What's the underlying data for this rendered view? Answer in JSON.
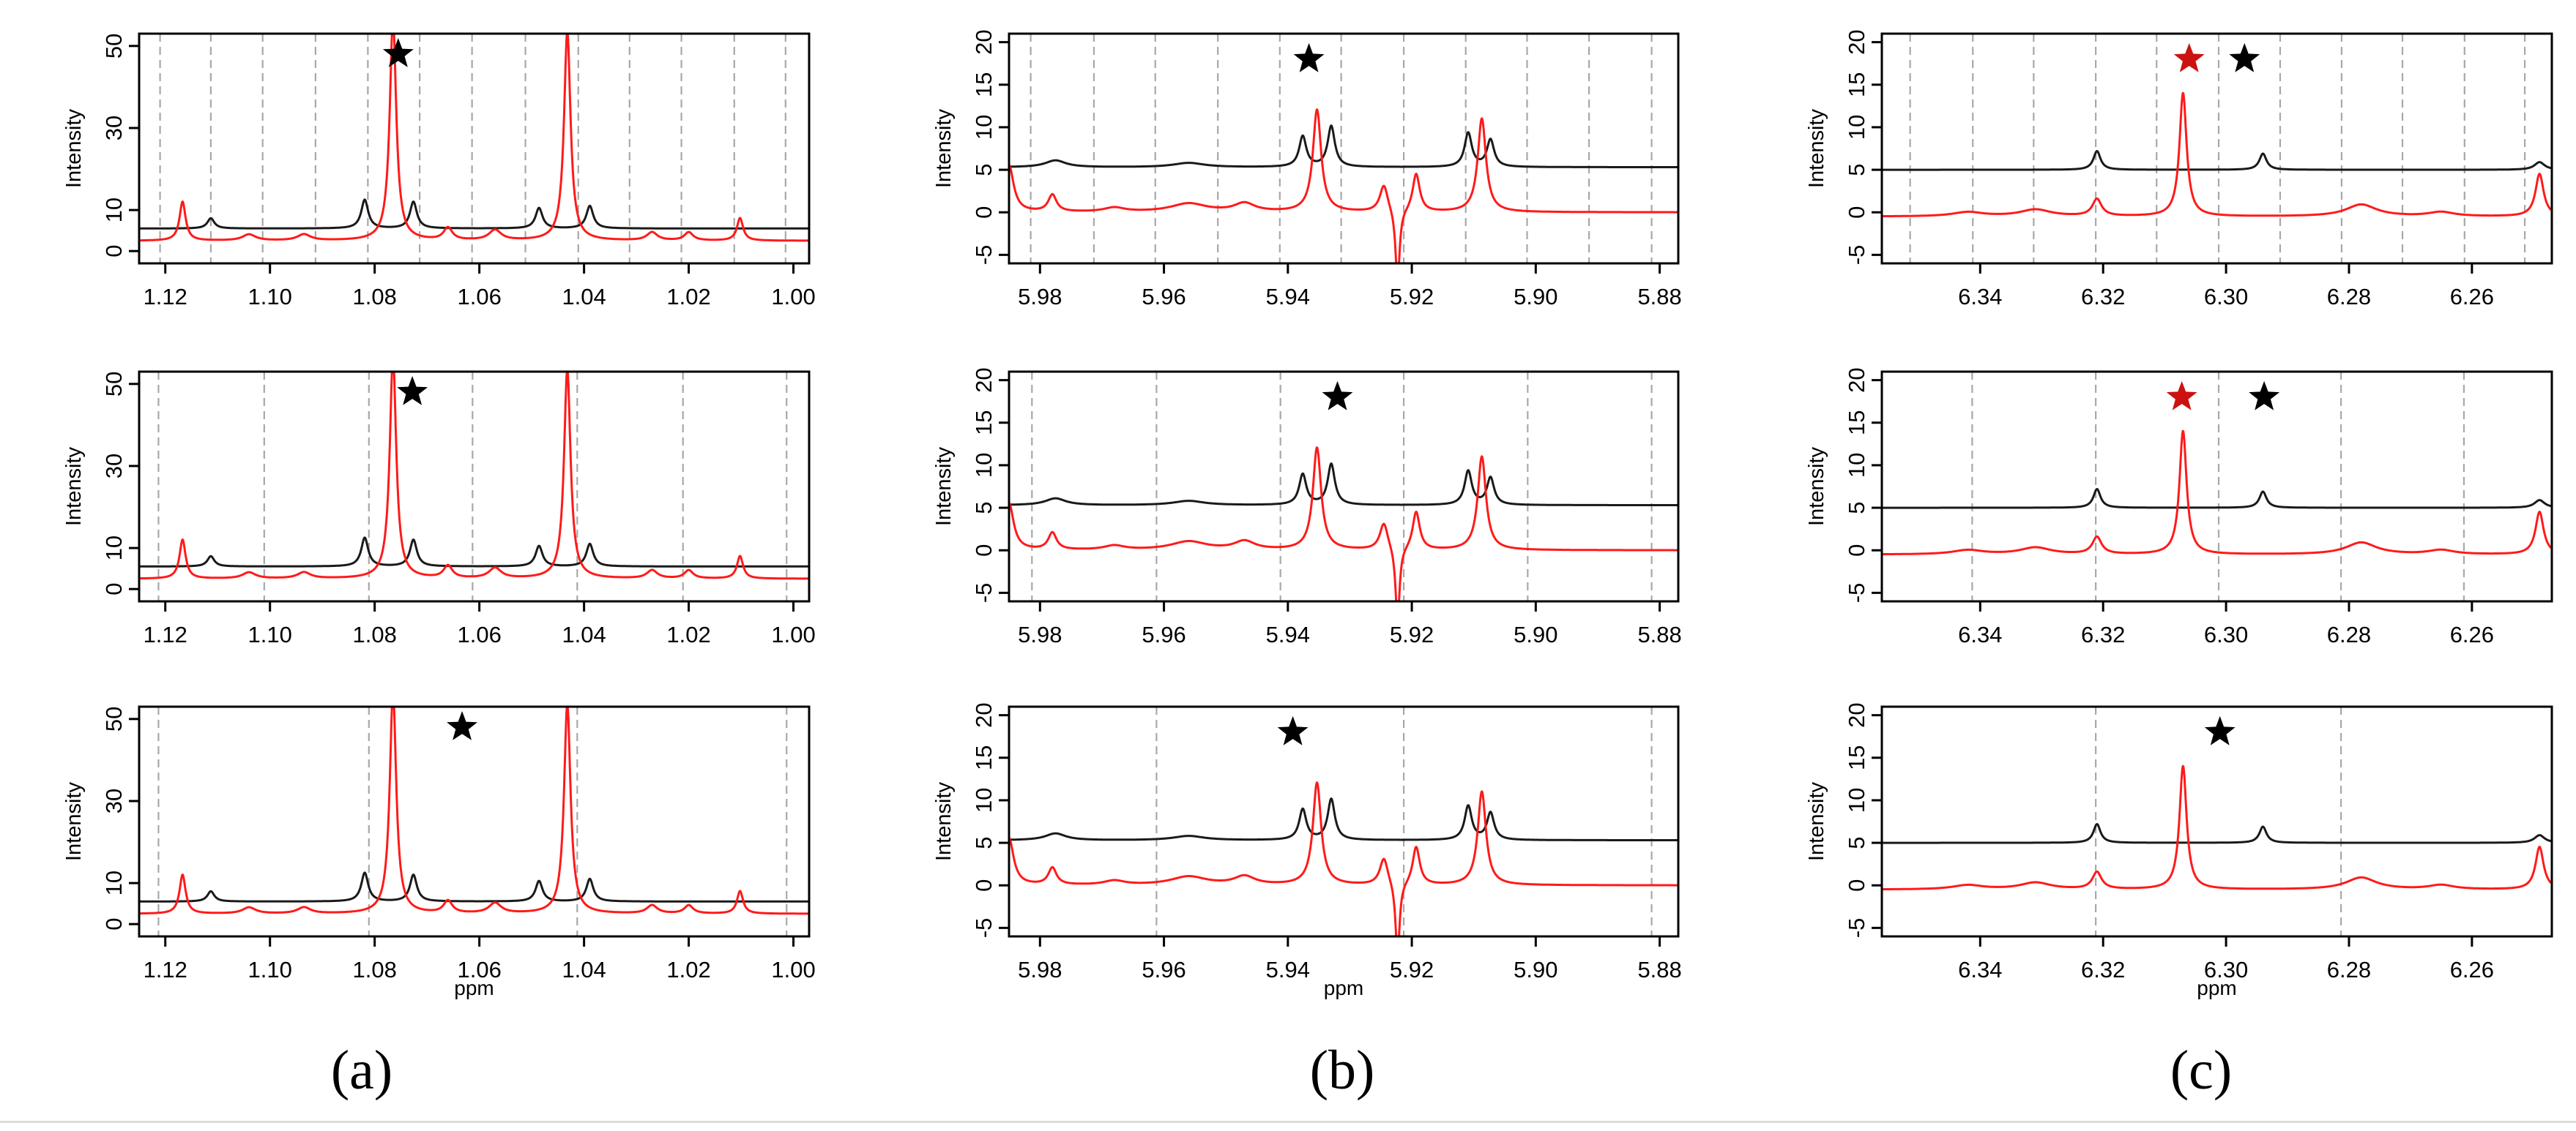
{
  "figure": {
    "panel_labels": [
      "(a)",
      "(b)",
      "(c)"
    ]
  },
  "colors": {
    "sample_trace": "#ff1a1a",
    "reference_trace": "#1a1a1a",
    "grid_line": "#a8a8a8",
    "star_black": "#000000",
    "star_red": "#cc1111"
  },
  "chart_data": [
    {
      "column": "a",
      "row": 1,
      "type": "line",
      "ylabel": "Intensity",
      "xlabel": "",
      "xlim": [
        1.125,
        0.997
      ],
      "ylim": [
        -3,
        53
      ],
      "xticks": [
        1.12,
        1.1,
        1.08,
        1.06,
        1.04,
        1.02,
        1.0
      ],
      "xtick_labels": [
        "1.12",
        "1.10",
        "1.08",
        "1.06",
        "1.04",
        "1.02",
        "1.00"
      ],
      "yticks": [
        0,
        10,
        30,
        50
      ],
      "ytick_labels": [
        "0",
        "10",
        "30",
        "50"
      ],
      "grid_x": [
        1.121,
        1.1113,
        1.1014,
        1.0913,
        1.0813,
        1.0714,
        1.0614,
        1.0512,
        1.0411,
        1.0313,
        1.0214,
        1.0113,
        1.0015
      ],
      "stars": [
        {
          "x": 1.0755,
          "y": 48,
          "color": "black"
        }
      ],
      "peak_set": "methyl"
    },
    {
      "column": "a",
      "row": 2,
      "type": "line",
      "ylabel": "Intensity",
      "xlabel": "",
      "xlim": [
        1.125,
        0.997
      ],
      "ylim": [
        -3,
        53
      ],
      "xticks": [
        1.12,
        1.1,
        1.08,
        1.06,
        1.04,
        1.02,
        1.0
      ],
      "xtick_labels": [
        "1.12",
        "1.10",
        "1.08",
        "1.06",
        "1.04",
        "1.02",
        "1.00"
      ],
      "yticks": [
        0,
        10,
        30,
        50
      ],
      "ytick_labels": [
        "0",
        "10",
        "30",
        "50"
      ],
      "grid_x": [
        1.1213,
        1.1011,
        1.0811,
        1.0613,
        1.0413,
        1.0211,
        1.0013
      ],
      "stars": [
        {
          "x": 1.0728,
          "y": 48,
          "color": "black"
        }
      ],
      "peak_set": "methyl"
    },
    {
      "column": "a",
      "row": 3,
      "type": "line",
      "ylabel": "Intensity",
      "xlabel": "ppm",
      "xlim": [
        1.125,
        0.997
      ],
      "ylim": [
        -3,
        53
      ],
      "xticks": [
        1.12,
        1.1,
        1.08,
        1.06,
        1.04,
        1.02,
        1.0
      ],
      "xtick_labels": [
        "1.12",
        "1.10",
        "1.08",
        "1.06",
        "1.04",
        "1.02",
        "1.00"
      ],
      "yticks": [
        0,
        10,
        30,
        50
      ],
      "ytick_labels": [
        "0",
        "10",
        "30",
        "50"
      ],
      "grid_x": [
        1.1213,
        1.0811,
        1.0413,
        1.0013
      ],
      "stars": [
        {
          "x": 1.0633,
          "y": 48,
          "color": "black"
        }
      ],
      "peak_set": "methyl"
    },
    {
      "column": "b",
      "row": 1,
      "type": "line",
      "ylabel": "Intensity",
      "xlabel": "",
      "xlim": [
        5.985,
        5.877
      ],
      "ylim": [
        -6,
        21
      ],
      "xticks": [
        5.98,
        5.96,
        5.94,
        5.92,
        5.9,
        5.88
      ],
      "xtick_labels": [
        "5.98",
        "5.96",
        "5.94",
        "5.92",
        "5.90",
        "5.88"
      ],
      "yticks": [
        -5,
        0,
        5,
        10,
        15,
        20
      ],
      "ytick_labels": [
        "-5",
        "0",
        "5",
        "10",
        "15",
        "20"
      ],
      "grid_x": [
        5.9815,
        5.9713,
        5.9614,
        5.9513,
        5.9413,
        5.9314,
        5.9213,
        5.9113,
        5.9014,
        5.8914,
        5.8813
      ],
      "stars": [
        {
          "x": 5.9366,
          "y": 18,
          "color": "black"
        }
      ],
      "peak_set": "olefin"
    },
    {
      "column": "b",
      "row": 2,
      "type": "line",
      "ylabel": "Intensity",
      "xlabel": "",
      "xlim": [
        5.985,
        5.877
      ],
      "ylim": [
        -6,
        21
      ],
      "xticks": [
        5.98,
        5.96,
        5.94,
        5.92,
        5.9,
        5.88
      ],
      "xtick_labels": [
        "5.98",
        "5.96",
        "5.94",
        "5.92",
        "5.90",
        "5.88"
      ],
      "yticks": [
        -5,
        0,
        5,
        10,
        15,
        20
      ],
      "ytick_labels": [
        "-5",
        "0",
        "5",
        "10",
        "15",
        "20"
      ],
      "grid_x": [
        5.9813,
        5.9612,
        5.9412,
        5.9213,
        5.9013,
        5.8813
      ],
      "stars": [
        {
          "x": 5.932,
          "y": 18,
          "color": "black"
        }
      ],
      "peak_set": "olefin"
    },
    {
      "column": "b",
      "row": 3,
      "type": "line",
      "ylabel": "Intensity",
      "xlabel": "ppm",
      "xlim": [
        5.985,
        5.877
      ],
      "ylim": [
        -6,
        21
      ],
      "xticks": [
        5.98,
        5.96,
        5.94,
        5.92,
        5.9,
        5.88
      ],
      "xtick_labels": [
        "5.98",
        "5.96",
        "5.94",
        "5.92",
        "5.90",
        "5.88"
      ],
      "yticks": [
        -5,
        0,
        5,
        10,
        15,
        20
      ],
      "ytick_labels": [
        "-5",
        "0",
        "5",
        "10",
        "15",
        "20"
      ],
      "grid_x": [
        5.9612,
        5.9213,
        5.8813
      ],
      "stars": [
        {
          "x": 5.9392,
          "y": 18,
          "color": "black"
        }
      ],
      "peak_set": "olefin"
    },
    {
      "column": "c",
      "row": 1,
      "type": "line",
      "ylabel": "Intensity",
      "xlabel": "",
      "xlim": [
        6.356,
        6.247
      ],
      "ylim": [
        -6,
        21
      ],
      "xticks": [
        6.34,
        6.32,
        6.3,
        6.28,
        6.26
      ],
      "xtick_labels": [
        "6.34",
        "6.32",
        "6.30",
        "6.28",
        "6.26"
      ],
      "yticks": [
        -5,
        0,
        5,
        10,
        15,
        20
      ],
      "ytick_labels": [
        "-5",
        "0",
        "5",
        "10",
        "15",
        "20"
      ],
      "grid_x": [
        6.3514,
        6.3412,
        6.3313,
        6.3212,
        6.3113,
        6.3012,
        6.2912,
        6.2812,
        6.2713,
        6.2612,
        6.2514
      ],
      "stars": [
        {
          "x": 6.306,
          "y": 18,
          "color": "red"
        },
        {
          "x": 6.297,
          "y": 18,
          "color": "black"
        }
      ],
      "peak_set": "aromatic"
    },
    {
      "column": "c",
      "row": 2,
      "type": "line",
      "ylabel": "Intensity",
      "xlabel": "",
      "xlim": [
        6.356,
        6.247
      ],
      "ylim": [
        -6,
        21
      ],
      "xticks": [
        6.34,
        6.32,
        6.3,
        6.28,
        6.26
      ],
      "xtick_labels": [
        "6.34",
        "6.32",
        "6.30",
        "6.28",
        "6.26"
      ],
      "yticks": [
        -5,
        0,
        5,
        10,
        15,
        20
      ],
      "ytick_labels": [
        "-5",
        "0",
        "5",
        "10",
        "15",
        "20"
      ],
      "grid_x": [
        6.3413,
        6.3212,
        6.3012,
        6.2813,
        6.2613
      ],
      "stars": [
        {
          "x": 6.3072,
          "y": 18,
          "color": "red"
        },
        {
          "x": 6.2938,
          "y": 18,
          "color": "black"
        }
      ],
      "peak_set": "aromatic"
    },
    {
      "column": "c",
      "row": 3,
      "type": "line",
      "ylabel": "Intensity",
      "xlabel": "ppm",
      "xlim": [
        6.356,
        6.247
      ],
      "ylim": [
        -6,
        21
      ],
      "xticks": [
        6.34,
        6.32,
        6.3,
        6.28,
        6.26
      ],
      "xtick_labels": [
        "6.34",
        "6.32",
        "6.30",
        "6.28",
        "6.26"
      ],
      "yticks": [
        -5,
        0,
        5,
        10,
        15,
        20
      ],
      "ytick_labels": [
        "-5",
        "0",
        "5",
        "10",
        "15",
        "20"
      ],
      "grid_x": [
        6.3212,
        6.2813
      ],
      "stars": [
        {
          "x": 6.301,
          "y": 18,
          "color": "black"
        }
      ],
      "peak_set": "aromatic"
    }
  ],
  "peak_sets": {
    "methyl": {
      "black": {
        "baseline": 5.5,
        "peaks": [
          [
            1.1113,
            2.5,
            0.0008
          ],
          [
            1.0819,
            7.0,
            0.0008
          ],
          [
            1.0726,
            6.5,
            0.0008
          ],
          [
            1.0486,
            5.0,
            0.0008
          ],
          [
            1.0389,
            5.5,
            0.0008
          ]
        ]
      },
      "red": {
        "baseline": 2.5,
        "peaks": [
          [
            1.1167,
            9.5,
            0.0007
          ],
          [
            1.0765,
            54,
            0.00075
          ],
          [
            1.0432,
            51,
            0.00075
          ],
          [
            1.0102,
            5.5,
            0.0007
          ],
          [
            1.027,
            2.0,
            0.0012
          ],
          [
            1.057,
            2.5,
            0.0014
          ],
          [
            1.0935,
            1.5,
            0.0015
          ],
          [
            1.104,
            1.5,
            0.0015
          ],
          [
            1.066,
            3.0,
            0.001
          ],
          [
            1.02,
            2.0,
            0.001
          ]
        ]
      }
    },
    "olefin": {
      "black": {
        "baseline": 5.3,
        "peaks": [
          [
            5.9376,
            3.6,
            0.0007
          ],
          [
            5.933,
            4.8,
            0.0007
          ],
          [
            5.9109,
            4.0,
            0.0007
          ],
          [
            5.9073,
            3.2,
            0.0007
          ],
          [
            5.9775,
            0.8,
            0.002
          ],
          [
            5.956,
            0.5,
            0.003
          ]
        ]
      },
      "red": {
        "baseline": 0.0,
        "peaks": [
          [
            5.9353,
            12.0,
            0.0008
          ],
          [
            5.9245,
            3.2,
            0.0008
          ],
          [
            5.9223,
            -9.0,
            0.0004
          ],
          [
            5.9193,
            4.5,
            0.0007
          ],
          [
            5.9087,
            11.0,
            0.0008
          ],
          [
            5.985,
            5.5,
            0.0009
          ],
          [
            5.978,
            2.0,
            0.0008
          ],
          [
            5.956,
            1.0,
            0.0035
          ],
          [
            5.947,
            1.0,
            0.002
          ],
          [
            5.968,
            0.5,
            0.002
          ]
        ]
      }
    },
    "aromatic": {
      "black": {
        "baseline": 5.0,
        "peaks": [
          [
            6.321,
            2.2,
            0.0007
          ],
          [
            6.294,
            1.9,
            0.0007
          ],
          [
            6.249,
            0.9,
            0.001
          ]
        ]
      },
      "red": {
        "baseline": -0.5,
        "peaks": [
          [
            6.307,
            14.5,
            0.0007
          ],
          [
            6.321,
            2.0,
            0.0009
          ],
          [
            6.249,
            5.0,
            0.0008
          ],
          [
            6.278,
            1.4,
            0.003
          ],
          [
            6.331,
            0.8,
            0.003
          ],
          [
            6.342,
            0.5,
            0.003
          ],
          [
            6.265,
            0.5,
            0.0025
          ]
        ]
      }
    }
  }
}
